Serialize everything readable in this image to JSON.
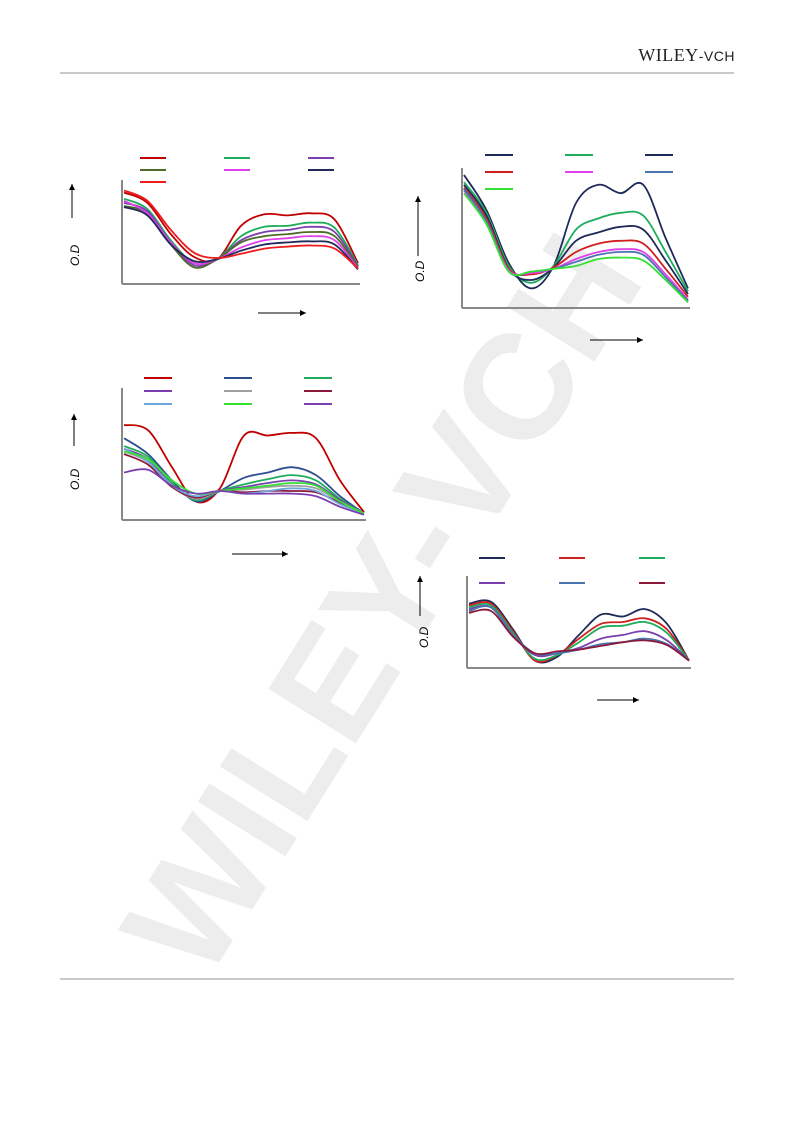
{
  "header": {
    "publisher_main": "WILEY",
    "publisher_suffix": "-VCH"
  },
  "watermark_text": "WILEY-VCH",
  "chart_data": [
    {
      "type": "line",
      "ylabel": "O.D",
      "xlabel": "",
      "legend_position": "top",
      "series": [
        {
          "color": "#c00000",
          "values": [
            0.88,
            0.78,
            0.48,
            0.26,
            0.24,
            0.56,
            0.67,
            0.66,
            0.68,
            0.62,
            0.2
          ]
        },
        {
          "color": "#1ead5c",
          "values": [
            0.82,
            0.72,
            0.42,
            0.2,
            0.24,
            0.46,
            0.55,
            0.56,
            0.59,
            0.54,
            0.18
          ]
        },
        {
          "color": "#7b3fb0",
          "values": [
            0.78,
            0.7,
            0.4,
            0.18,
            0.24,
            0.42,
            0.5,
            0.52,
            0.55,
            0.5,
            0.17
          ]
        },
        {
          "color": "#4e6b2a",
          "values": [
            0.75,
            0.68,
            0.38,
            0.16,
            0.24,
            0.4,
            0.46,
            0.48,
            0.5,
            0.46,
            0.16
          ]
        },
        {
          "color": "#e040e8",
          "values": [
            0.8,
            0.68,
            0.4,
            0.2,
            0.24,
            0.35,
            0.42,
            0.44,
            0.46,
            0.42,
            0.15
          ]
        },
        {
          "color": "#1f2a5a",
          "values": [
            0.74,
            0.66,
            0.38,
            0.22,
            0.24,
            0.32,
            0.38,
            0.4,
            0.41,
            0.38,
            0.14
          ]
        },
        {
          "color": "#ee1c1c",
          "values": [
            0.9,
            0.8,
            0.52,
            0.3,
            0.25,
            0.29,
            0.34,
            0.36,
            0.37,
            0.34,
            0.15
          ]
        }
      ]
    },
    {
      "type": "line",
      "ylabel": "O.D",
      "xlabel": "",
      "legend_position": "top",
      "series": [
        {
          "color": "#1f2a5a",
          "values": [
            0.95,
            0.7,
            0.32,
            0.14,
            0.3,
            0.75,
            0.88,
            0.82,
            0.88,
            0.5,
            0.14
          ]
        },
        {
          "color": "#1ead5c",
          "values": [
            0.9,
            0.68,
            0.3,
            0.18,
            0.3,
            0.56,
            0.64,
            0.68,
            0.66,
            0.4,
            0.12
          ]
        },
        {
          "color": "#1f2a5a",
          "values": [
            0.88,
            0.66,
            0.28,
            0.2,
            0.29,
            0.48,
            0.54,
            0.58,
            0.56,
            0.34,
            0.1
          ]
        },
        {
          "color": "#d01f1f",
          "values": [
            0.86,
            0.64,
            0.28,
            0.24,
            0.29,
            0.4,
            0.46,
            0.48,
            0.46,
            0.28,
            0.08
          ]
        },
        {
          "color": "#e040e8",
          "values": [
            0.84,
            0.62,
            0.27,
            0.25,
            0.28,
            0.35,
            0.4,
            0.42,
            0.4,
            0.24,
            0.06
          ]
        },
        {
          "color": "#4a74b0",
          "values": [
            0.85,
            0.62,
            0.26,
            0.26,
            0.28,
            0.33,
            0.38,
            0.4,
            0.38,
            0.22,
            0.05
          ]
        },
        {
          "color": "#35e035",
          "values": [
            0.82,
            0.6,
            0.26,
            0.26,
            0.28,
            0.3,
            0.35,
            0.36,
            0.34,
            0.2,
            0.04
          ]
        }
      ]
    },
    {
      "type": "line",
      "ylabel": "O.D",
      "xlabel": "",
      "legend_position": "top",
      "series": [
        {
          "color": "#c00000",
          "values": [
            0.72,
            0.68,
            0.4,
            0.14,
            0.24,
            0.64,
            0.64,
            0.66,
            0.62,
            0.3,
            0.06
          ]
        },
        {
          "color": "#2e4f8f",
          "values": [
            0.62,
            0.5,
            0.3,
            0.14,
            0.22,
            0.32,
            0.36,
            0.4,
            0.34,
            0.18,
            0.05
          ]
        },
        {
          "color": "#1ead5c",
          "values": [
            0.56,
            0.48,
            0.28,
            0.15,
            0.22,
            0.27,
            0.31,
            0.34,
            0.3,
            0.16,
            0.05
          ]
        },
        {
          "color": "#7b3fb0",
          "values": [
            0.54,
            0.46,
            0.26,
            0.16,
            0.22,
            0.25,
            0.28,
            0.3,
            0.27,
            0.15,
            0.05
          ]
        },
        {
          "color": "#a0a0a0",
          "values": [
            0.52,
            0.44,
            0.26,
            0.16,
            0.22,
            0.23,
            0.25,
            0.26,
            0.24,
            0.14,
            0.05
          ]
        },
        {
          "color": "#8b1a3a",
          "values": [
            0.5,
            0.42,
            0.25,
            0.17,
            0.22,
            0.21,
            0.22,
            0.22,
            0.21,
            0.13,
            0.05
          ]
        },
        {
          "color": "#6fa8dc",
          "values": [
            0.54,
            0.44,
            0.26,
            0.18,
            0.22,
            0.2,
            0.22,
            0.24,
            0.22,
            0.12,
            0.05
          ]
        },
        {
          "color": "#35e035",
          "values": [
            0.52,
            0.46,
            0.3,
            0.2,
            0.22,
            0.24,
            0.26,
            0.28,
            0.26,
            0.14,
            0.05
          ]
        },
        {
          "color": "#7b3fb0",
          "values": [
            0.36,
            0.38,
            0.26,
            0.2,
            0.22,
            0.2,
            0.2,
            0.2,
            0.18,
            0.1,
            0.04
          ]
        }
      ]
    },
    {
      "type": "line",
      "ylabel": "O.D",
      "xlabel": "",
      "legend_position": "top",
      "series": [
        {
          "color": "#1f2a5a",
          "values": [
            0.7,
            0.72,
            0.42,
            0.08,
            0.12,
            0.36,
            0.58,
            0.56,
            0.64,
            0.48,
            0.08
          ]
        },
        {
          "color": "#d01f1f",
          "values": [
            0.68,
            0.7,
            0.4,
            0.08,
            0.14,
            0.32,
            0.48,
            0.5,
            0.54,
            0.42,
            0.08
          ]
        },
        {
          "color": "#1ead5c",
          "values": [
            0.66,
            0.68,
            0.38,
            0.1,
            0.14,
            0.28,
            0.44,
            0.46,
            0.5,
            0.38,
            0.08
          ]
        },
        {
          "color": "#7b3fb0",
          "values": [
            0.64,
            0.66,
            0.36,
            0.14,
            0.16,
            0.22,
            0.32,
            0.36,
            0.4,
            0.3,
            0.08
          ]
        },
        {
          "color": "#4a74b0",
          "values": [
            0.62,
            0.66,
            0.36,
            0.16,
            0.16,
            0.2,
            0.26,
            0.28,
            0.32,
            0.26,
            0.08
          ]
        },
        {
          "color": "#8b1a3a",
          "values": [
            0.6,
            0.62,
            0.34,
            0.16,
            0.18,
            0.2,
            0.24,
            0.28,
            0.3,
            0.25,
            0.08
          ]
        }
      ]
    }
  ]
}
